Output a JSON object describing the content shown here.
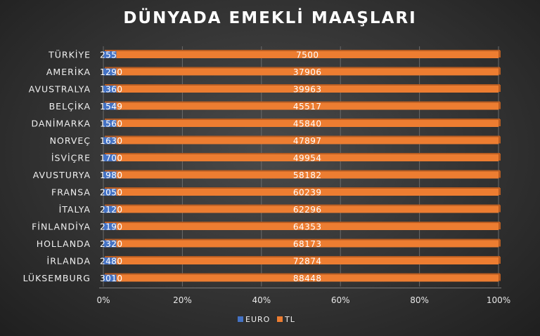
{
  "chart_data": {
    "type": "bar",
    "orientation": "horizontal",
    "stacking": "percent",
    "title": "DÜNYADA EMEKLİ MAAŞLARI",
    "categories": [
      "TÜRKİYE",
      "AMERİKA",
      "AVUSTRALYA",
      "BELÇİKA",
      "DANİMARKA",
      "NORVEÇ",
      "İSVİÇRE",
      "AVUSTURYA",
      "FRANSA",
      "İTALYA",
      "FİNLANDİYA",
      "HOLLANDA",
      "İRLANDA",
      "LÜKSEMBURG"
    ],
    "series": [
      {
        "name": "EURO",
        "color": "#4472c4",
        "values": [
          255,
          1290,
          1360,
          1549,
          1560,
          1630,
          1700,
          1980,
          2050,
          2120,
          2190,
          2320,
          2480,
          3010
        ]
      },
      {
        "name": "TL",
        "color": "#ed7d31",
        "values": [
          7500,
          37906,
          39963,
          45517,
          45840,
          47897,
          49954,
          58182,
          60239,
          62296,
          64353,
          68173,
          72874,
          88448
        ]
      }
    ],
    "x_ticks": [
      "0%",
      "20%",
      "40%",
      "60%",
      "80%",
      "100%"
    ],
    "xlim": [
      0,
      100
    ],
    "grid": true,
    "legend_position": "bottom"
  }
}
